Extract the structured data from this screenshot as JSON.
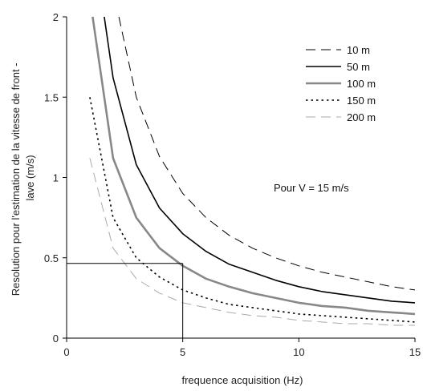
{
  "chart_data": {
    "type": "line",
    "title": "",
    "xlabel": "frequence acquisition (Hz)",
    "ylabel_lines": [
      "Resolution pour l'estimation de la vitesse de front -",
      "lave (m/s)"
    ],
    "xlim": [
      0,
      15
    ],
    "ylim": [
      0,
      2
    ],
    "xticks": [
      0,
      5,
      10,
      15
    ],
    "yticks": [
      0,
      0.5,
      1,
      1.5,
      2
    ],
    "xtick_labels": [
      "0",
      "5",
      "10",
      "15"
    ],
    "ytick_labels": [
      "0",
      "0.5",
      "1",
      "1.5",
      "2"
    ],
    "grid": false,
    "legend_position": "top-right",
    "annotation": "Pour V = 15 m/s",
    "x": [
      1,
      2,
      3,
      4,
      5,
      6,
      7,
      8,
      9,
      10,
      11,
      12,
      13,
      14,
      15
    ],
    "series": [
      {
        "name": "10 m",
        "color": "#000000",
        "style": "dashed",
        "width": 1,
        "values": [
          null,
          null,
          1.5,
          1.13,
          0.9,
          0.75,
          0.64,
          0.56,
          0.5,
          0.45,
          0.41,
          0.38,
          0.35,
          0.32,
          0.3
        ]
      },
      {
        "name": "50 m",
        "color": "#000000",
        "style": "solid",
        "width": 1.6,
        "values": [
          null,
          1.62,
          1.08,
          0.81,
          0.65,
          0.54,
          0.46,
          0.41,
          0.36,
          0.32,
          0.29,
          0.27,
          0.25,
          0.23,
          0.22
        ]
      },
      {
        "name": "100 m",
        "color": "#888888",
        "style": "solid",
        "width": 2.6,
        "values": [
          null,
          1.12,
          0.75,
          0.56,
          0.45,
          0.37,
          0.32,
          0.28,
          0.25,
          0.22,
          0.2,
          0.19,
          0.17,
          0.16,
          0.15
        ]
      },
      {
        "name": "150 m",
        "color": "#000000",
        "style": "dotted",
        "width": 1.6,
        "values": [
          1.5,
          0.75,
          0.5,
          0.38,
          0.3,
          0.25,
          0.21,
          0.19,
          0.17,
          0.15,
          0.14,
          0.13,
          0.12,
          0.11,
          0.1
        ]
      },
      {
        "name": "200 m",
        "color": "#aaaaaa",
        "style": "dashed",
        "width": 1,
        "values": [
          1.12,
          0.56,
          0.37,
          0.28,
          0.22,
          0.19,
          0.16,
          0.14,
          0.13,
          0.11,
          0.1,
          0.09,
          0.09,
          0.08,
          0.08
        ]
      }
    ],
    "reference_lines": {
      "x": 5,
      "y": 0.465
    }
  }
}
